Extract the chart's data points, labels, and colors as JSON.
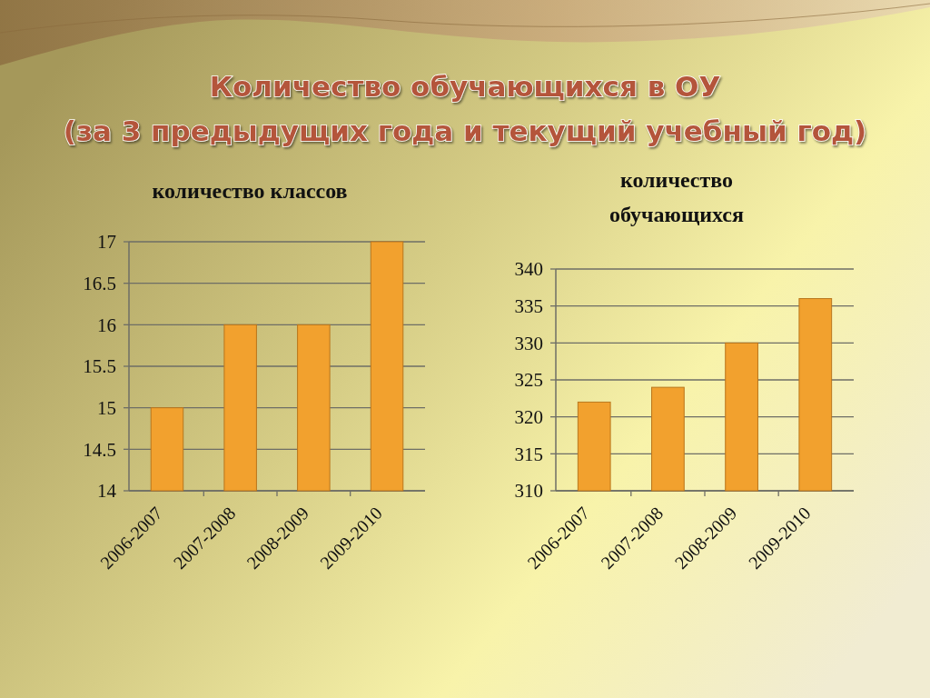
{
  "chart_data": [
    {
      "type": "other",
      "title": "Количество обучающихся в ОУ",
      "subtitle": "(за 3 предыдущих года и текущий учебный год)"
    },
    {
      "type": "bar",
      "title": "количество классов",
      "categories": [
        "2006-2007",
        "2007-2008",
        "2008-2009",
        "2009-2010"
      ],
      "values": [
        15,
        16,
        16,
        17
      ],
      "color": "#f2a12e",
      "ylim": [
        14,
        17
      ],
      "yticks": [
        14,
        14.5,
        15,
        15.5,
        16,
        16.5,
        17
      ],
      "grid": "y"
    },
    {
      "type": "bar",
      "title": "количество обучающихся",
      "categories": [
        "2006-2007",
        "2007-2008",
        "2008-2009",
        "2009-2010"
      ],
      "values": [
        322,
        324,
        330,
        336
      ],
      "color": "#f2a12e",
      "ylim": [
        310,
        340
      ],
      "yticks": [
        310,
        315,
        320,
        325,
        330,
        335,
        340
      ],
      "grid": "y"
    }
  ]
}
